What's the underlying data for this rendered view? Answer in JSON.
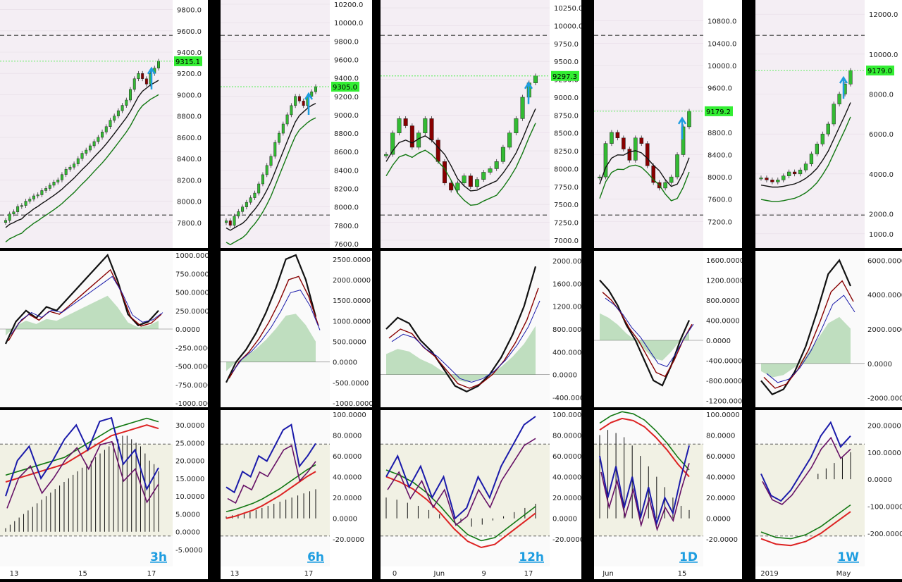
{
  "colors": {
    "pane_bg": "#fafafa",
    "price_bg": "#f4eef4",
    "osc_bg": "#f1f1e4",
    "candle_up": "#33bb33",
    "candle_down": "#880000",
    "rsi_blue": "#1a1aaa",
    "rsi_purple": "#661166",
    "ma_red": "#dd2222",
    "ma_green": "#117711",
    "annotation": "#1e9de0",
    "price_tag": "#33ee33"
  },
  "chart_data": [
    {
      "type": "candlestick",
      "label": "3h",
      "current_price": "9315.1",
      "price_ticks": [
        "9800.0",
        "9600.0",
        "9400.0",
        "9200.0",
        "9000.0",
        "8800.0",
        "8600.0",
        "8400.0",
        "8200.0",
        "8000.0",
        "7800.0"
      ],
      "ylim": [
        7600,
        9850
      ],
      "osc1_ticks": [
        "1000.0000",
        "750.0000",
        "500.0000",
        "250.0000",
        "0.0000",
        "-250.0000",
        "-500.0000",
        "-750.0000",
        "-1000.0000"
      ],
      "osc1_ylim": [
        -1000,
        1000
      ],
      "osc2_ticks": [
        "30.0000",
        "25.0000",
        "20.0000",
        "15.0000",
        "10.0000",
        "5.0000",
        "0.0000",
        "-5.0000"
      ],
      "osc2_ylim": [
        -5,
        33
      ],
      "x_ticks": [
        "13",
        "15",
        "17"
      ],
      "closes": [
        7820,
        7880,
        7900,
        7950,
        7960,
        8000,
        8020,
        8050,
        8060,
        8100,
        8120,
        8150,
        8180,
        8200,
        8250,
        8300,
        8320,
        8350,
        8400,
        8450,
        8480,
        8520,
        8560,
        8600,
        8650,
        8700,
        8760,
        8800,
        8850,
        8900,
        8950,
        9050,
        9150,
        9200,
        9150,
        9100,
        9200,
        9250,
        9315
      ],
      "osc1": [
        -200,
        100,
        250,
        150,
        300,
        250,
        400,
        550,
        700,
        850,
        1000,
        650,
        200,
        50,
        100,
        250
      ],
      "osc2_blue": [
        10,
        20,
        24,
        15,
        20,
        26,
        30,
        23,
        31,
        32,
        19,
        23,
        12,
        18
      ],
      "osc2_red": [
        14,
        15,
        16,
        17,
        18,
        19,
        21,
        23,
        25,
        27,
        28,
        29,
        30,
        29
      ],
      "osc2_hist": [
        1,
        2,
        3,
        4,
        5,
        6,
        7,
        8,
        9,
        10,
        11,
        12,
        13,
        14,
        15,
        16,
        17,
        18,
        19,
        20,
        21,
        22,
        23,
        24,
        25,
        26,
        27,
        27,
        26,
        25,
        24,
        22,
        20,
        19,
        17
      ]
    },
    {
      "type": "candlestick",
      "label": "6h",
      "current_price": "9305.0",
      "price_ticks": [
        "10200.0",
        "10000.0",
        "9800.0",
        "9600.0",
        "9400.0",
        "9200.0",
        "9000.0",
        "8800.0",
        "8600.0",
        "8400.0",
        "8200.0",
        "8000.0",
        "7800.0",
        "7600.0"
      ],
      "ylim": [
        7600,
        10200
      ],
      "osc1_ticks": [
        "2500.0000",
        "2000.0000",
        "1500.0000",
        "1000.0000",
        "500.0000",
        "0.0000",
        "-500.0000",
        "-1000.0000"
      ],
      "osc1_ylim": [
        -1000,
        2600
      ],
      "osc2_ticks": [
        "100.0000",
        "80.0000",
        "60.0000",
        "40.0000",
        "20.0000",
        "0.0000",
        "-20.0000"
      ],
      "osc2_ylim": [
        -30,
        100
      ],
      "x_ticks": [
        "13",
        "17"
      ],
      "closes": [
        7850,
        7800,
        7900,
        7950,
        8000,
        8050,
        8100,
        8150,
        8250,
        8350,
        8450,
        8550,
        8700,
        8800,
        8900,
        9000,
        9100,
        9200,
        9150,
        9100,
        9200,
        9250,
        9305
      ],
      "osc1": [
        -500,
        0,
        300,
        700,
        1200,
        1800,
        2500,
        2600,
        2000,
        1100
      ],
      "osc2_blue": [
        30,
        25,
        45,
        40,
        60,
        55,
        70,
        85,
        90,
        50,
        60,
        72
      ],
      "osc2_red": [
        0,
        2,
        5,
        8,
        12,
        17,
        22,
        28,
        34,
        40,
        45
      ],
      "osc2_hist": [
        2,
        3,
        4,
        5,
        6,
        8,
        10,
        12,
        14,
        16,
        18,
        20,
        22,
        24,
        26,
        28
      ]
    },
    {
      "type": "candlestick",
      "label": "12h",
      "current_price": "9297.3",
      "price_ticks": [
        "10250.0",
        "10000.0",
        "9750.0",
        "9500.0",
        "9250.0",
        "9000.0",
        "8750.0",
        "8500.0",
        "8250.0",
        "8000.0",
        "7750.0",
        "7500.0",
        "7250.0",
        "7000.0"
      ],
      "ylim": [
        6950,
        10300
      ],
      "osc1_ticks": [
        "2000.0000",
        "1600.0000",
        "1200.0000",
        "800.0000",
        "400.0000",
        "0.0000",
        "-400.0000"
      ],
      "osc1_ylim": [
        -500,
        2100
      ],
      "osc2_ticks": [
        "100.0000",
        "80.0000",
        "60.0000",
        "40.0000",
        "20.0000",
        "0.0000",
        "-20.0000"
      ],
      "osc2_ylim": [
        -30,
        100
      ],
      "x_ticks": [
        "0",
        "Jun",
        "9",
        "17"
      ],
      "closes": [
        8200,
        8500,
        8700,
        8600,
        8300,
        8500,
        8700,
        8400,
        8100,
        7800,
        7700,
        7800,
        7900,
        7750,
        7850,
        7950,
        8000,
        8100,
        8300,
        8500,
        8700,
        9000,
        9200,
        9297
      ],
      "osc1": [
        800,
        1000,
        900,
        600,
        400,
        100,
        -200,
        -300,
        -200,
        0,
        300,
        700,
        1200,
        1900
      ],
      "osc2_blue": [
        40,
        60,
        30,
        50,
        20,
        40,
        0,
        10,
        40,
        20,
        50,
        70,
        90,
        98
      ],
      "osc2_red": [
        40,
        35,
        28,
        18,
        5,
        -10,
        -22,
        -28,
        -25,
        -15,
        -5,
        5
      ],
      "osc2_hist": [
        20,
        18,
        15,
        12,
        8,
        4,
        0,
        -4,
        -8,
        -6,
        -2,
        2,
        6,
        10,
        14
      ]
    },
    {
      "type": "candlestick",
      "label": "1D",
      "current_price": "9179.2",
      "price_ticks": [
        "10800.0",
        "10400.0",
        "10000.0",
        "9600.0",
        "9200.0",
        "8800.0",
        "8400.0",
        "8000.0",
        "7600.0",
        "7200.0"
      ],
      "ylim": [
        6800,
        11100
      ],
      "osc1_ticks": [
        "1600.0000",
        "1200.0000",
        "800.0000",
        "400.0000",
        "0.0000",
        "-400.0000",
        "-800.0000",
        "-1200.0000"
      ],
      "osc1_ylim": [
        -1250,
        1700
      ],
      "osc2_ticks": [
        "100.0000",
        "80.0000",
        "60.0000",
        "40.0000",
        "20.0000",
        "0.0000",
        "-20.0000"
      ],
      "osc2_ylim": [
        -30,
        100
      ],
      "x_ticks": [
        "Jun",
        "15"
      ],
      "closes": [
        8000,
        8600,
        8800,
        8700,
        8500,
        8300,
        8700,
        8600,
        8200,
        7900,
        7800,
        7900,
        8000,
        8400,
        8900,
        9179
      ],
      "osc1": [
        1200,
        1000,
        700,
        300,
        0,
        -400,
        -800,
        -900,
        -500,
        0,
        400
      ],
      "osc2_blue": [
        60,
        20,
        50,
        10,
        40,
        0,
        30,
        -5,
        20,
        5,
        40,
        70
      ],
      "osc2_red": [
        85,
        92,
        96,
        94,
        88,
        78,
        66,
        52,
        40
      ],
      "osc2_hist": [
        80,
        85,
        82,
        78,
        70,
        60,
        50,
        40,
        30,
        20,
        12,
        8
      ]
    },
    {
      "type": "candlestick",
      "label": "1W",
      "current_price": "9179.0",
      "price_ticks": [
        "12000.0",
        "10000.0",
        "8000.0",
        "6000.0",
        "4000.0",
        "2000.0",
        "1000.0"
      ],
      "ylim": [
        500,
        12500
      ],
      "osc1_ticks": [
        "6000.0000",
        "4000.0000",
        "2000.0000",
        "0.0000",
        "-2000.0000"
      ],
      "osc1_ylim": [
        -2300,
        6300
      ],
      "osc2_ticks": [
        "200.0000",
        "100.0000",
        "0.0000",
        "-100.0000",
        "-200.0000"
      ],
      "osc2_ylim": [
        -260,
        240
      ],
      "x_ticks": [
        "2019",
        "May"
      ],
      "closes": [
        3800,
        3700,
        3600,
        3700,
        3900,
        4100,
        4000,
        4200,
        4500,
        5000,
        5500,
        6000,
        6500,
        7500,
        8000,
        8500,
        9179
      ],
      "osc1": [
        -1000,
        -1800,
        -1500,
        -500,
        1000,
        3000,
        5200,
        6000,
        4500
      ],
      "osc2_blue": [
        20,
        -60,
        -80,
        -40,
        20,
        80,
        160,
        210,
        120,
        160
      ],
      "osc2_red": [
        -220,
        -240,
        -245,
        -230,
        -200,
        -160,
        -120
      ],
      "osc2_hist": [
        0,
        0,
        0,
        0,
        0,
        0,
        0,
        20,
        40,
        60,
        80,
        100
      ]
    }
  ]
}
